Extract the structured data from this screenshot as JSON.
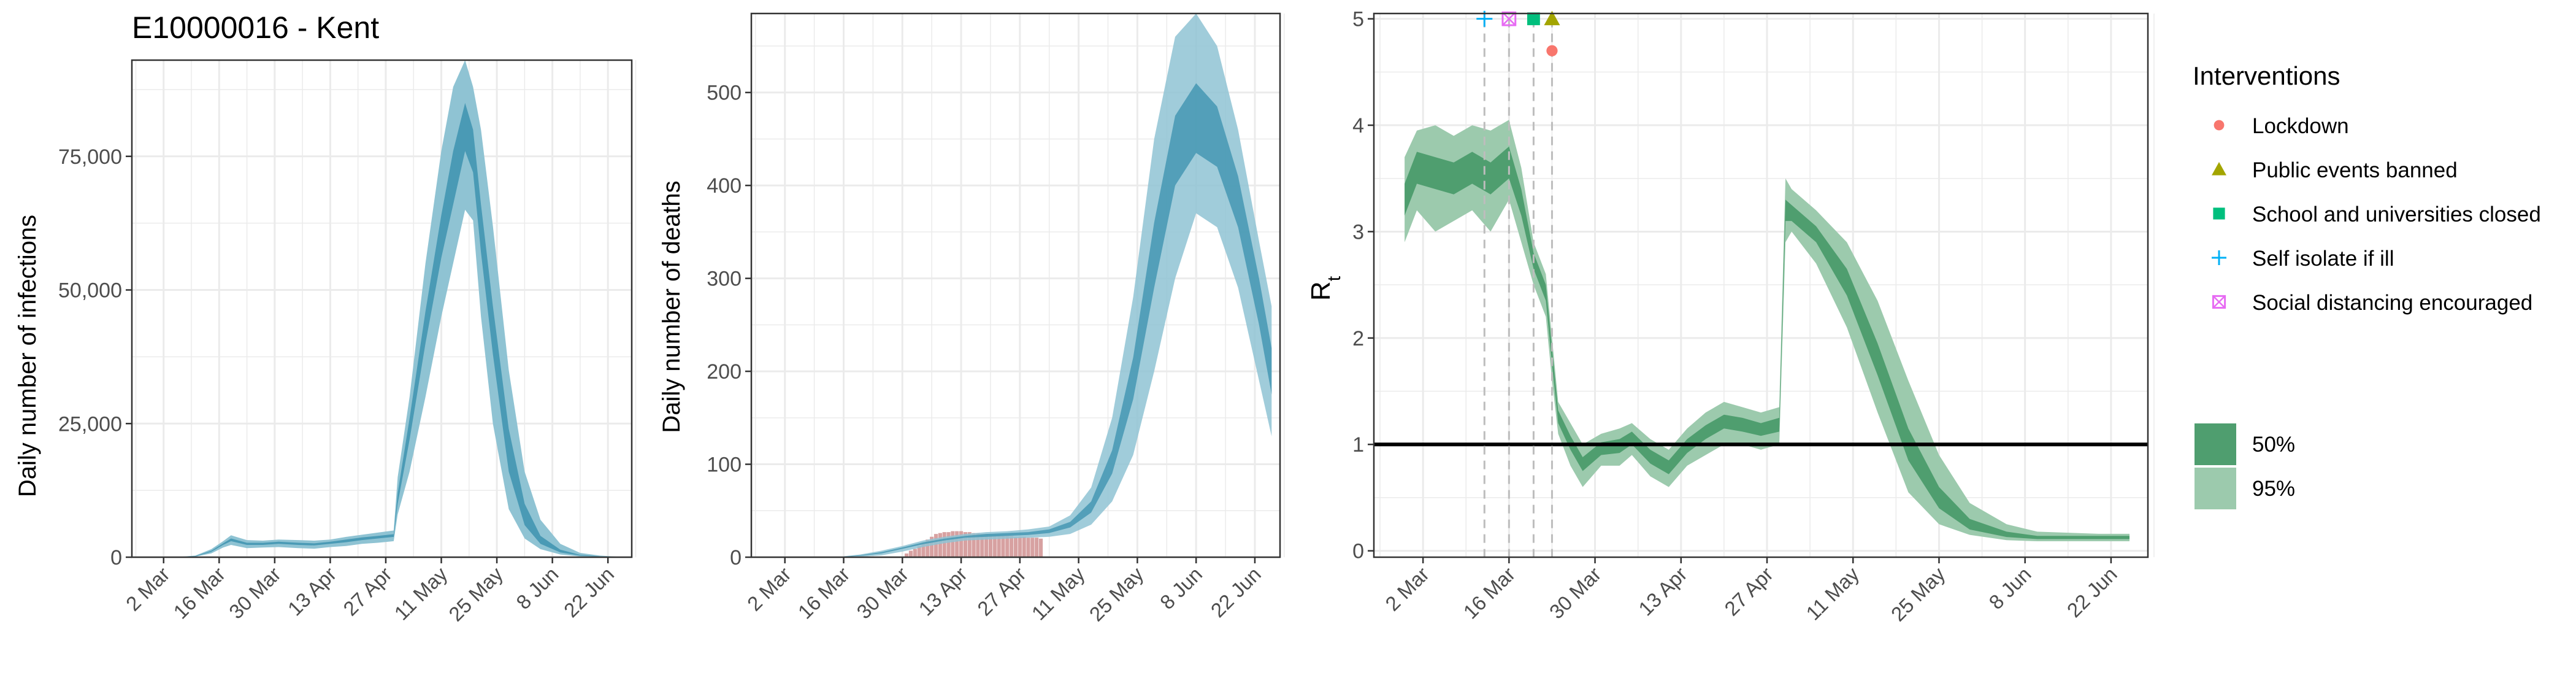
{
  "figure": {
    "colors": {
      "infection_band_95": "#8fc3d3",
      "infection_band_50": "#4a9ab5",
      "infection_line": "#3a8aa5",
      "observed_deaths": "#d7a1a1",
      "rt_band_95": "#9ccaad",
      "rt_band_50": "#4f9e6f",
      "threshold_line": "#000000",
      "gridline": "#ebebeb",
      "intervention_line": "#bdbdbd"
    }
  },
  "chart_data": [
    {
      "type": "area",
      "title": "E10000016 - Kent",
      "xlabel": "",
      "ylabel": "Daily number of infections",
      "x_ticks": [
        "2 Mar",
        "16 Mar",
        "30 Mar",
        "13 Apr",
        "27 Apr",
        "11 May",
        "25 May",
        "8 Jun",
        "22 Jun"
      ],
      "y_ticks": [
        "0",
        "25,000",
        "50,000",
        "75,000"
      ],
      "ylim": [
        0,
        93000
      ],
      "xlim": [
        "2020-02-23",
        "2020-06-28"
      ],
      "grid": true,
      "series": [
        {
          "band": "95%",
          "x": [
            "2020-02-28",
            "2020-03-05",
            "2020-03-10",
            "2020-03-14",
            "2020-03-17",
            "2020-03-19",
            "2020-03-23",
            "2020-03-27",
            "2020-03-31",
            "2020-04-05",
            "2020-04-09",
            "2020-04-13",
            "2020-04-17",
            "2020-04-21",
            "2020-04-25",
            "2020-04-29",
            "2020-04-30",
            "2020-05-03",
            "2020-05-07",
            "2020-05-11",
            "2020-05-14",
            "2020-05-17",
            "2020-05-19",
            "2020-05-21",
            "2020-05-24",
            "2020-05-28",
            "2020-06-01",
            "2020-06-05",
            "2020-06-10",
            "2020-06-15",
            "2020-06-20",
            "2020-06-24"
          ],
          "lower": [
            0,
            0,
            100,
            700,
            1800,
            2300,
            1700,
            1800,
            1900,
            1700,
            1600,
            1900,
            2100,
            2500,
            2700,
            3000,
            8000,
            16000,
            30000,
            45000,
            55000,
            65000,
            63000,
            45000,
            25000,
            9000,
            3500,
            1500,
            500,
            150,
            50,
            20
          ],
          "upper": [
            0,
            0,
            300,
            1500,
            3000,
            4100,
            3200,
            3100,
            3300,
            3200,
            3100,
            3300,
            3800,
            4200,
            4600,
            5000,
            15000,
            30000,
            55000,
            76000,
            88000,
            93000,
            88000,
            80000,
            62000,
            35000,
            16000,
            7000,
            2500,
            800,
            300,
            120
          ]
        },
        {
          "band": "50%",
          "x": [
            "2020-02-28",
            "2020-03-05",
            "2020-03-10",
            "2020-03-14",
            "2020-03-17",
            "2020-03-19",
            "2020-03-23",
            "2020-03-27",
            "2020-03-31",
            "2020-04-05",
            "2020-04-09",
            "2020-04-13",
            "2020-04-17",
            "2020-04-21",
            "2020-04-25",
            "2020-04-29",
            "2020-04-30",
            "2020-05-03",
            "2020-05-07",
            "2020-05-11",
            "2020-05-14",
            "2020-05-17",
            "2020-05-19",
            "2020-05-21",
            "2020-05-24",
            "2020-05-28",
            "2020-06-01",
            "2020-06-05",
            "2020-06-10",
            "2020-06-15",
            "2020-06-20",
            "2020-06-24"
          ],
          "lower": [
            0,
            0,
            150,
            1000,
            2300,
            3000,
            2300,
            2300,
            2500,
            2300,
            2200,
            2500,
            2800,
            3200,
            3500,
            3800,
            10000,
            22000,
            40000,
            56000,
            66000,
            76000,
            72000,
            57000,
            38000,
            16000,
            6000,
            2500,
            900,
            300,
            100,
            40
          ],
          "upper": [
            0,
            0,
            220,
            1200,
            2600,
            3500,
            2700,
            2700,
            2900,
            2700,
            2600,
            2900,
            3300,
            3700,
            4000,
            4300,
            12000,
            26000,
            46000,
            64000,
            76000,
            85000,
            80000,
            66000,
            47000,
            24000,
            10000,
            4000,
            1400,
            450,
            160,
            60
          ]
        }
      ]
    },
    {
      "type": "area",
      "title": "",
      "xlabel": "",
      "ylabel": "Daily number of deaths",
      "x_ticks": [
        "2 Mar",
        "16 Mar",
        "30 Mar",
        "13 Apr",
        "27 Apr",
        "11 May",
        "25 May",
        "8 Jun",
        "22 Jun"
      ],
      "y_ticks": [
        "0",
        "100",
        "200",
        "300",
        "400",
        "500"
      ],
      "ylim": [
        0,
        585
      ],
      "xlim": [
        "2020-02-23",
        "2020-06-28"
      ],
      "grid": true,
      "bars": {
        "name": "Observed deaths",
        "x": [
          "2020-03-31",
          "2020-04-01",
          "2020-04-02",
          "2020-04-03",
          "2020-04-04",
          "2020-04-05",
          "2020-04-06",
          "2020-04-07",
          "2020-04-08",
          "2020-04-09",
          "2020-04-10",
          "2020-04-11",
          "2020-04-12",
          "2020-04-13",
          "2020-04-14",
          "2020-04-15",
          "2020-04-16",
          "2020-04-17",
          "2020-04-18",
          "2020-04-19",
          "2020-04-20",
          "2020-04-21",
          "2020-04-22",
          "2020-04-23",
          "2020-04-24",
          "2020-04-25",
          "2020-04-26",
          "2020-04-27",
          "2020-04-28",
          "2020-04-29",
          "2020-04-30",
          "2020-05-01",
          "2020-05-02"
        ],
        "values": [
          4,
          7,
          9,
          12,
          15,
          19,
          22,
          25,
          26,
          27,
          27,
          28,
          28,
          28,
          27,
          27,
          26,
          26,
          25,
          25,
          24,
          24,
          24,
          23,
          23,
          23,
          22,
          22,
          22,
          21,
          21,
          21,
          20
        ]
      },
      "series": [
        {
          "band": "95%",
          "x": [
            "2020-03-16",
            "2020-03-20",
            "2020-03-25",
            "2020-03-30",
            "2020-04-04",
            "2020-04-09",
            "2020-04-14",
            "2020-04-19",
            "2020-04-24",
            "2020-04-29",
            "2020-05-04",
            "2020-05-09",
            "2020-05-14",
            "2020-05-19",
            "2020-05-24",
            "2020-05-29",
            "2020-06-03",
            "2020-06-08",
            "2020-06-13",
            "2020-06-18",
            "2020-06-23",
            "2020-06-26"
          ],
          "lower": [
            0,
            0.5,
            2,
            6,
            11,
            15,
            18,
            19,
            20,
            21,
            22,
            25,
            35,
            60,
            110,
            200,
            300,
            370,
            355,
            290,
            190,
            130
          ],
          "upper": [
            1,
            3,
            7,
            12,
            18,
            22,
            25,
            27,
            28,
            30,
            33,
            45,
            75,
            150,
            280,
            450,
            560,
            585,
            550,
            460,
            340,
            270
          ]
        },
        {
          "band": "50%",
          "x": [
            "2020-03-16",
            "2020-03-20",
            "2020-03-25",
            "2020-03-30",
            "2020-04-04",
            "2020-04-09",
            "2020-04-14",
            "2020-04-19",
            "2020-04-24",
            "2020-04-29",
            "2020-05-04",
            "2020-05-09",
            "2020-05-14",
            "2020-05-19",
            "2020-05-24",
            "2020-05-29",
            "2020-06-03",
            "2020-06-08",
            "2020-06-13",
            "2020-06-18",
            "2020-06-23",
            "2020-06-26"
          ],
          "lower": [
            0.3,
            1.5,
            4,
            9,
            14,
            18,
            21,
            22,
            23,
            24,
            26,
            32,
            48,
            90,
            170,
            290,
            400,
            435,
            420,
            355,
            250,
            175
          ],
          "upper": [
            0.6,
            2.2,
            5.5,
            10.5,
            16,
            20,
            23,
            25,
            26,
            27,
            30,
            38,
            60,
            115,
            215,
            360,
            475,
            510,
            485,
            410,
            300,
            225
          ]
        }
      ]
    },
    {
      "type": "area",
      "title": "",
      "xlabel": "",
      "ylabel": "R",
      "ylabel_subscript": "t",
      "x_ticks": [
        "2 Mar",
        "16 Mar",
        "30 Mar",
        "13 Apr",
        "27 Apr",
        "11 May",
        "25 May",
        "8 Jun",
        "22 Jun"
      ],
      "y_ticks": [
        "0",
        "1",
        "2",
        "3",
        "4",
        "5"
      ],
      "ylim": [
        0,
        5.05
      ],
      "xlim": [
        "2020-02-23",
        "2020-06-28"
      ],
      "grid": true,
      "threshold": 1,
      "interventions": [
        {
          "name": "Lockdown",
          "date": "2020-03-23",
          "marker": "circle",
          "color": "#f8766d",
          "level": 4.7
        },
        {
          "name": "Public events banned",
          "date": "2020-03-23",
          "marker": "triangle",
          "color": "#a3a500",
          "level": 5
        },
        {
          "name": "School and universities closed",
          "date": "2020-03-20",
          "marker": "square",
          "color": "#00bf7d",
          "level": 5
        },
        {
          "name": "Self isolate if ill",
          "date": "2020-03-12",
          "marker": "plus",
          "color": "#00b0f6",
          "level": 5
        },
        {
          "name": "Social distancing encouraged",
          "date": "2020-03-16",
          "marker": "boxcross",
          "color": "#e76bf3",
          "level": 5
        }
      ],
      "legend": {
        "position": "right",
        "title": "Interventions",
        "bands": [
          "50%",
          "95%"
        ]
      },
      "series": [
        {
          "band": "95%",
          "x": [
            "2020-02-28",
            "2020-03-01",
            "2020-03-04",
            "2020-03-07",
            "2020-03-10",
            "2020-03-13",
            "2020-03-16",
            "2020-03-18",
            "2020-03-20",
            "2020-03-22",
            "2020-03-23",
            "2020-03-24",
            "2020-03-26",
            "2020-03-28",
            "2020-03-31",
            "2020-04-03",
            "2020-04-05",
            "2020-04-08",
            "2020-04-11",
            "2020-04-14",
            "2020-04-17",
            "2020-04-20",
            "2020-04-23",
            "2020-04-26",
            "2020-04-29",
            "2020-04-30",
            "2020-05-01",
            "2020-05-05",
            "2020-05-10",
            "2020-05-15",
            "2020-05-20",
            "2020-05-25",
            "2020-05-30",
            "2020-06-05",
            "2020-06-10",
            "2020-06-15",
            "2020-06-20",
            "2020-06-25"
          ],
          "lower": [
            2.9,
            3.2,
            3.0,
            3.1,
            3.2,
            3.0,
            3.3,
            2.9,
            2.5,
            2.2,
            1.6,
            1.1,
            0.8,
            0.6,
            0.8,
            0.8,
            0.9,
            0.7,
            0.6,
            0.8,
            0.9,
            1.0,
            1.0,
            0.95,
            1.0,
            2.9,
            3.0,
            2.7,
            2.1,
            1.3,
            0.55,
            0.25,
            0.15,
            0.1,
            0.09,
            0.09,
            0.09,
            0.09
          ],
          "upper": [
            3.7,
            3.95,
            4.0,
            3.9,
            4.0,
            3.95,
            4.05,
            3.6,
            2.9,
            2.6,
            2.0,
            1.4,
            1.2,
            1.0,
            1.1,
            1.15,
            1.2,
            1.05,
            0.95,
            1.15,
            1.3,
            1.4,
            1.35,
            1.3,
            1.35,
            3.5,
            3.4,
            3.2,
            2.9,
            2.35,
            1.6,
            0.9,
            0.45,
            0.25,
            0.18,
            0.17,
            0.16,
            0.16
          ]
        },
        {
          "band": "50%",
          "x": [
            "2020-02-28",
            "2020-03-01",
            "2020-03-04",
            "2020-03-07",
            "2020-03-10",
            "2020-03-13",
            "2020-03-16",
            "2020-03-18",
            "2020-03-20",
            "2020-03-22",
            "2020-03-23",
            "2020-03-24",
            "2020-03-26",
            "2020-03-28",
            "2020-03-31",
            "2020-04-03",
            "2020-04-05",
            "2020-04-08",
            "2020-04-11",
            "2020-04-14",
            "2020-04-17",
            "2020-04-20",
            "2020-04-23",
            "2020-04-26",
            "2020-04-29",
            "2020-04-30",
            "2020-05-01",
            "2020-05-05",
            "2020-05-10",
            "2020-05-15",
            "2020-05-20",
            "2020-05-25",
            "2020-05-30",
            "2020-06-05",
            "2020-06-10",
            "2020-06-15",
            "2020-06-20",
            "2020-06-25"
          ],
          "lower": [
            3.15,
            3.45,
            3.4,
            3.35,
            3.45,
            3.35,
            3.5,
            3.15,
            2.65,
            2.35,
            1.75,
            1.2,
            0.95,
            0.75,
            0.9,
            0.92,
            1.0,
            0.82,
            0.72,
            0.92,
            1.05,
            1.15,
            1.12,
            1.08,
            1.12,
            3.1,
            3.1,
            2.9,
            2.4,
            1.65,
            0.85,
            0.4,
            0.2,
            0.13,
            0.11,
            0.11,
            0.11,
            0.11
          ],
          "upper": [
            3.45,
            3.75,
            3.7,
            3.65,
            3.75,
            3.65,
            3.8,
            3.4,
            2.8,
            2.5,
            1.9,
            1.32,
            1.08,
            0.88,
            1.02,
            1.05,
            1.12,
            0.95,
            0.85,
            1.05,
            1.18,
            1.28,
            1.25,
            1.2,
            1.25,
            3.3,
            3.25,
            3.05,
            2.65,
            1.95,
            1.15,
            0.6,
            0.3,
            0.18,
            0.14,
            0.14,
            0.14,
            0.14
          ]
        }
      ]
    }
  ]
}
